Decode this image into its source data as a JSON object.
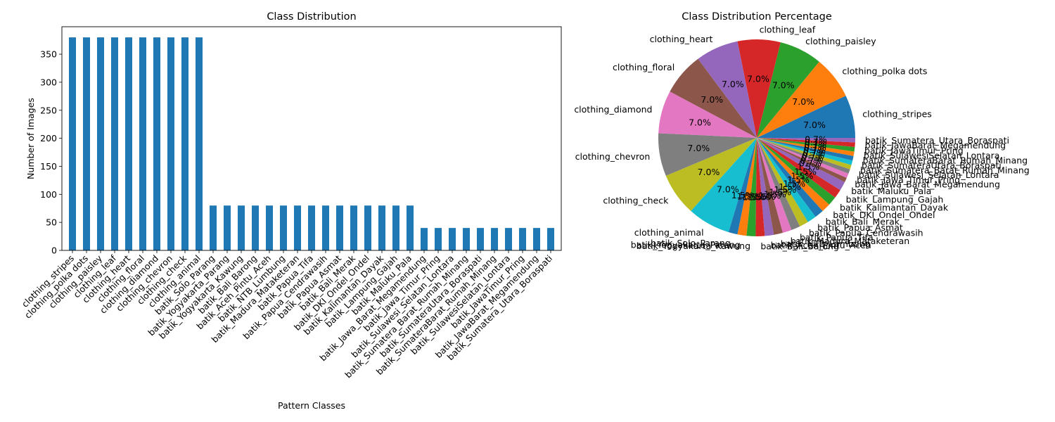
{
  "colors": {
    "bar": "#1f77b4",
    "pie_cycle": [
      "#1f77b4",
      "#ff7f0e",
      "#2ca02c",
      "#d62728",
      "#9467bd",
      "#8c564b",
      "#e377c2",
      "#7f7f7f",
      "#bcbd22",
      "#17becf"
    ]
  },
  "chart_data": [
    {
      "type": "bar",
      "title": "Class Distribution",
      "xlabel": "Pattern Classes",
      "ylabel": "Number of Images",
      "ylim": [
        0,
        399
      ],
      "yticks": [
        0,
        50,
        100,
        150,
        200,
        250,
        300,
        350
      ],
      "grid": false,
      "categories": [
        "clothing_stripes",
        "clothing_polka dots",
        "clothing_paisley",
        "clothing_leaf",
        "clothing_heart",
        "clothing_floral",
        "clothing_diamond",
        "clothing_chevron",
        "clothing_check",
        "clothing_animal",
        "batik_Solo_Parang",
        "batik_Yogyakarta_Parang",
        "batik_Yogyakarta_Kawung",
        "batik_Bali_Barong",
        "batik_Aceh_Pintu_Aceh",
        "batik_NTB_Lumbung",
        "batik_Madura_Mataketeran",
        "batik_Papua_Tifa",
        "batik_Papua_Cendrawasih",
        "batik_Papua_Asmat",
        "batik_Bali_Merak",
        "batik_DKI_Ondel_Ondel",
        "batik_Kalimantan_Dayak",
        "batik_Lampung_Gajah",
        "batik_Maluku_Pala",
        "batik_Jawa_Barat_Megamendung",
        "batik_Jawa_Timur_Pring",
        "batik_Sulawesi_Selatan_Lontara",
        "batik_Sumatera_Barat_Rumah_Minang",
        "batik_SumateraUtara_Boraspati",
        "batik_SumateraBarat_Rumah_Minang",
        "batik_SulawesiSelatan_Lontara",
        "batik_JawaTimur_Pring",
        "batik_JawaBarat_Megamendung",
        "batik_Sumatera_Utara_Boraspati"
      ],
      "values": [
        380,
        380,
        380,
        380,
        380,
        380,
        380,
        380,
        380,
        380,
        80,
        80,
        80,
        80,
        80,
        80,
        80,
        80,
        80,
        80,
        80,
        80,
        80,
        80,
        80,
        40,
        40,
        40,
        40,
        40,
        40,
        40,
        40,
        40,
        40
      ]
    },
    {
      "type": "pie",
      "title": "Class Distribution Percentage",
      "labels": [
        "clothing_stripes",
        "clothing_polka dots",
        "clothing_paisley",
        "clothing_leaf",
        "clothing_heart",
        "clothing_floral",
        "clothing_diamond",
        "clothing_chevron",
        "clothing_check",
        "clothing_animal",
        "batik_Solo_Parang",
        "batik_Yogyakarta_Parang",
        "batik_Yogyakarta_Kawung",
        "batik_Bali_Barong",
        "batik_Aceh_Pintu_Aceh",
        "batik_NTB_Lumbung",
        "batik_Madura_Mataketeran",
        "batik_Papua_Tifa",
        "batik_Papua_Cendrawasih",
        "batik_Papua_Asmat",
        "batik_Bali_Merak",
        "batik_DKI_Ondel_Ondel",
        "batik_Kalimantan_Dayak",
        "batik_Lampung_Gajah",
        "batik_Maluku_Pala",
        "batik_Jawa_Barat_Megamendung",
        "batik_Jawa_Timur_Pring",
        "batik_Sulawesi_Selatan_Lontara",
        "batik_Sumatera_Barat_Rumah_Minang",
        "batik_SumateraUtara_Boraspati",
        "batik_SumateraBarat_Rumah_Minang",
        "batik_SulawesiSelatan_Lontara",
        "batik_JawaTimur_Pring",
        "batik_JawaBarat_Megamendung",
        "batik_Sumatera_Utara_Boraspati"
      ],
      "values": [
        380,
        380,
        380,
        380,
        380,
        380,
        380,
        380,
        380,
        380,
        80,
        80,
        80,
        80,
        80,
        80,
        80,
        80,
        80,
        80,
        80,
        80,
        80,
        80,
        80,
        40,
        40,
        40,
        40,
        40,
        40,
        40,
        40,
        40,
        40
      ],
      "pct_labels": [
        "7.0%",
        "7.0%",
        "7.0%",
        "7.0%",
        "7.0%",
        "7.0%",
        "7.0%",
        "7.0%",
        "7.0%",
        "7.0%",
        "1.5%",
        "1.5%",
        "1.5%",
        "1.5%",
        "1.5%",
        "1.5%",
        "1.5%",
        "1.5%",
        "1.5%",
        "1.5%",
        "1.5%",
        "1.5%",
        "1.5%",
        "1.5%",
        "1.5%",
        "0.7%",
        "0.7%",
        "0.7%",
        "0.7%",
        "0.7%",
        "0.7%",
        "0.7%",
        "0.7%",
        "0.7%",
        "0.7%"
      ],
      "start_angle_deg": 0,
      "direction": "counterclockwise"
    }
  ]
}
